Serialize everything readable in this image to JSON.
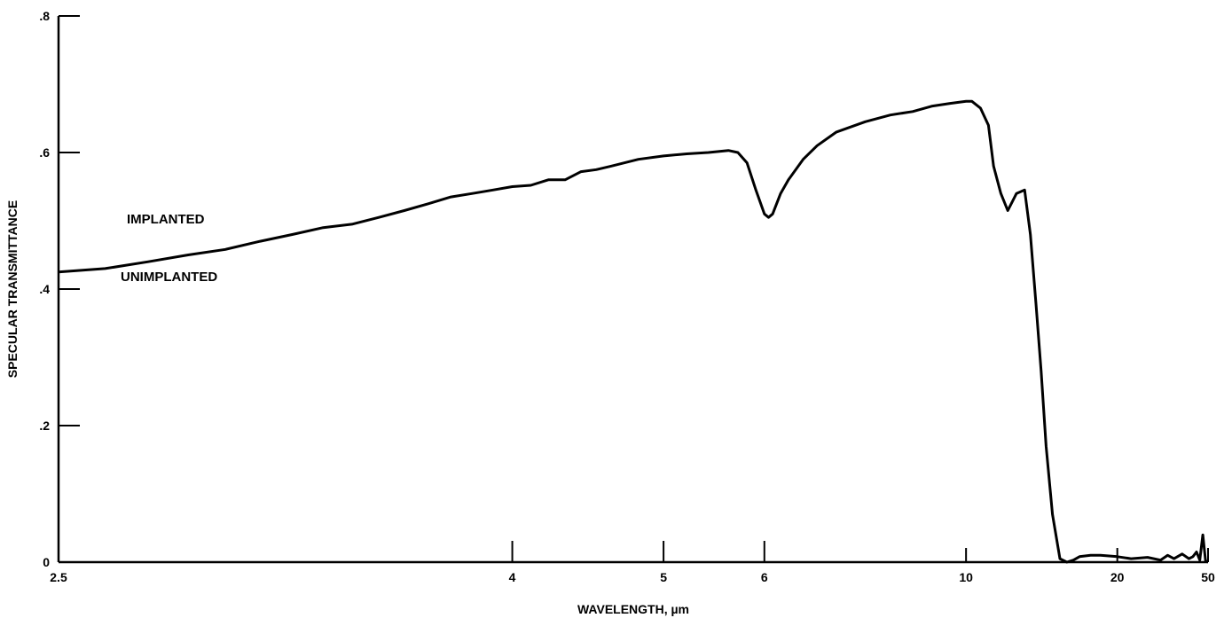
{
  "chart_data": {
    "type": "line",
    "title": "",
    "xlabel": "WAVELENGTH, µm",
    "ylabel": "SPECULAR TRANSMITTANCE",
    "x_scale": "reciprocal",
    "xlim": [
      2.5,
      50
    ],
    "ylim": [
      0,
      0.8
    ],
    "grid": false,
    "x_ticks": [
      2.5,
      4,
      5,
      6,
      10,
      20,
      50
    ],
    "x_tick_labels": [
      "2.5",
      "4",
      "5",
      "6",
      "10",
      "20",
      "50"
    ],
    "y_ticks": [
      0,
      0.2,
      0.4,
      0.6,
      0.8
    ],
    "y_tick_labels": [
      "0",
      ".2",
      ".4",
      ".6",
      ".8"
    ],
    "annotations": [
      "IMPLANTED",
      "UNIMPLANTED"
    ],
    "series": [
      {
        "x": [
          2.5,
          2.6,
          2.7,
          2.8,
          2.9,
          3.0,
          3.1,
          3.2,
          3.3,
          3.4,
          3.5,
          3.6,
          3.7,
          3.8,
          3.9,
          4.0,
          4.1,
          4.2,
          4.3,
          4.4,
          4.5,
          4.6,
          4.8,
          5.0,
          5.2,
          5.4,
          5.6,
          5.7,
          5.8,
          5.9,
          6.0,
          6.05,
          6.1,
          6.2,
          6.3,
          6.5,
          6.7,
          7.0,
          7.5,
          8.0,
          8.5,
          9.0,
          9.5,
          10.0,
          10.2,
          10.5,
          10.8,
          11.0,
          11.3,
          11.6,
          12.0,
          12.4,
          12.7,
          13.0,
          13.3,
          13.6,
          14.0,
          14.5,
          15.0,
          15.5,
          16.0,
          17.0,
          18.0,
          20.0,
          22.0,
          25.0,
          28.0,
          30.0,
          32.0,
          35.0,
          38.0,
          40.0,
          42.0,
          44.0,
          46.0,
          48.0,
          50.0
        ],
        "values": [
          0.425,
          0.43,
          0.44,
          0.45,
          0.458,
          0.47,
          0.48,
          0.49,
          0.495,
          0.505,
          0.515,
          0.525,
          0.535,
          0.54,
          0.545,
          0.55,
          0.552,
          0.56,
          0.56,
          0.572,
          0.575,
          0.58,
          0.59,
          0.595,
          0.598,
          0.6,
          0.603,
          0.6,
          0.585,
          0.545,
          0.51,
          0.505,
          0.51,
          0.54,
          0.56,
          0.59,
          0.61,
          0.63,
          0.645,
          0.655,
          0.66,
          0.668,
          0.672,
          0.675,
          0.675,
          0.665,
          0.64,
          0.58,
          0.54,
          0.515,
          0.54,
          0.545,
          0.48,
          0.38,
          0.28,
          0.17,
          0.07,
          0.005,
          0.0,
          0.003,
          0.008,
          0.01,
          0.01,
          0.008,
          0.005,
          0.007,
          0.003,
          0.01,
          0.005,
          0.012,
          0.005,
          0.008,
          0.015,
          0.003,
          0.04,
          0.002,
          0.0
        ]
      }
    ]
  }
}
